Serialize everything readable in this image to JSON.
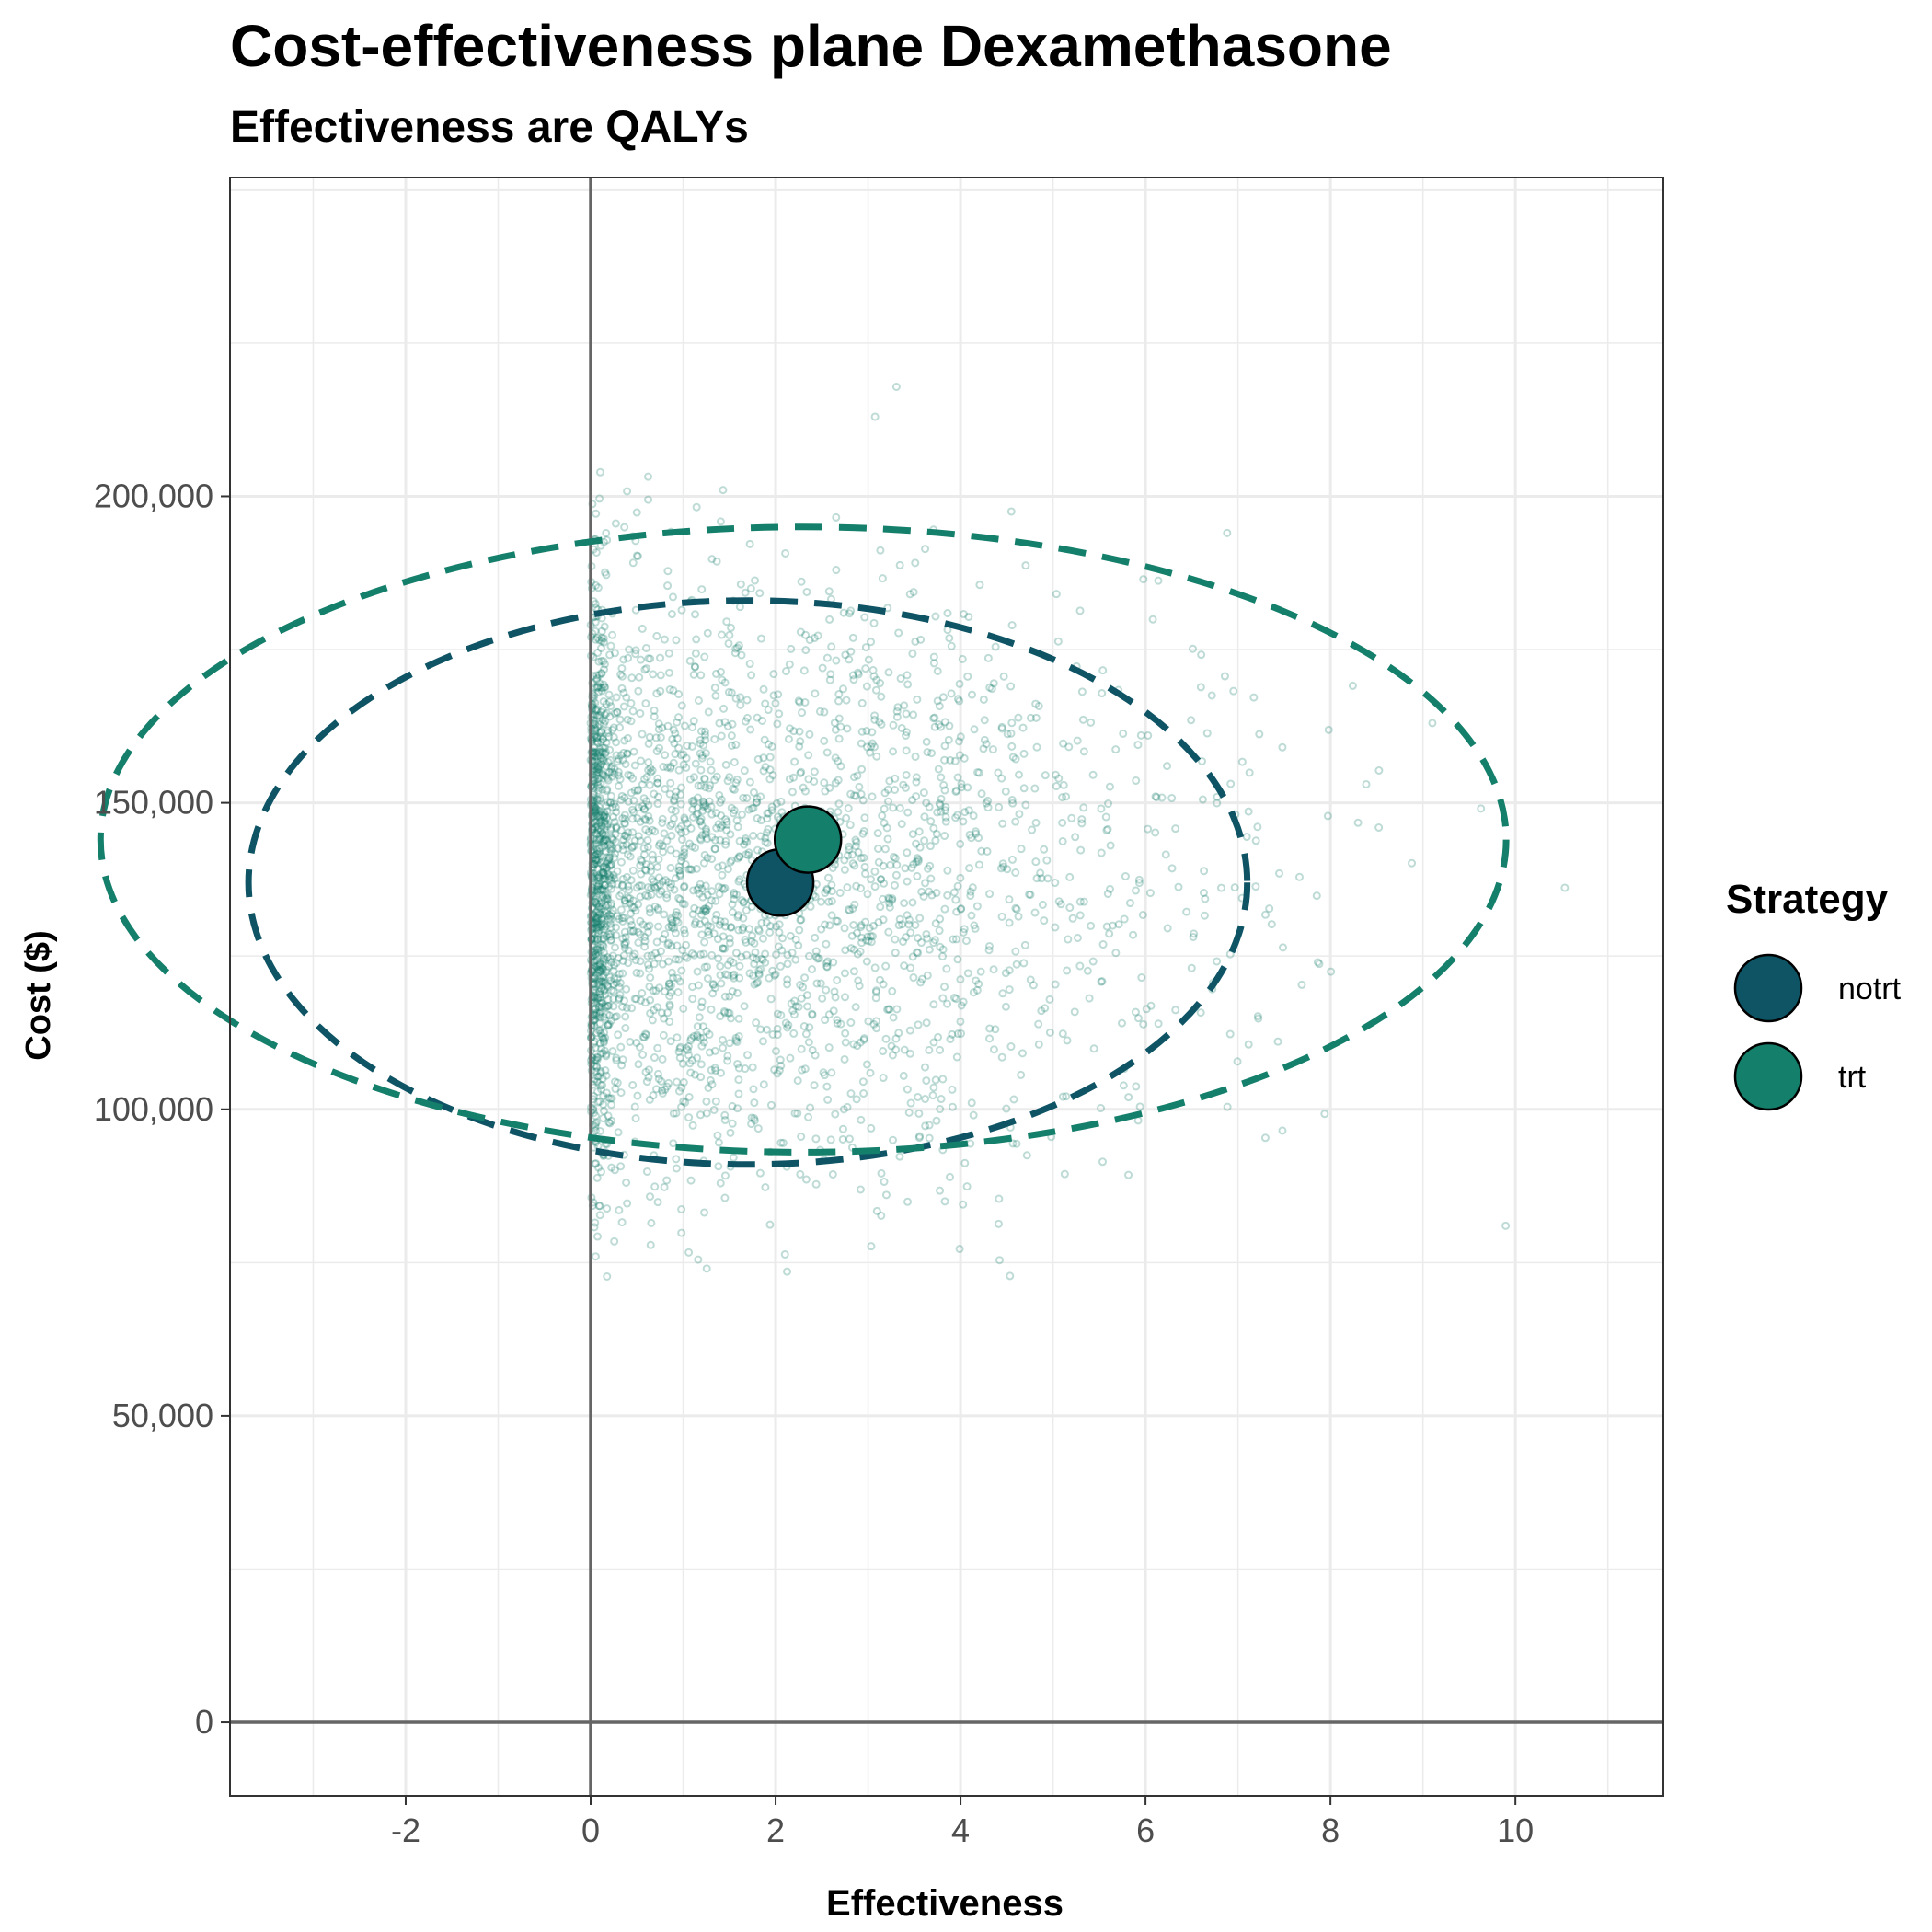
{
  "chart_data": {
    "type": "scatter",
    "title": "Cost-effectiveness plane Dexamethasone",
    "subtitle": "Effectiveness are QALYs",
    "xlabel": "Effectiveness",
    "ylabel": "Cost ($)",
    "xlim": [
      -3.9,
      11.6
    ],
    "ylim": [
      -12000,
      252000
    ],
    "x_ticks": [
      -2,
      0,
      2,
      4,
      6,
      8,
      10
    ],
    "x_tick_labels": [
      "-2",
      "0",
      "2",
      "4",
      "6",
      "8",
      "10"
    ],
    "y_ticks": [
      0,
      50000,
      100000,
      150000,
      200000
    ],
    "y_tick_labels": [
      "0",
      "50,000",
      "100,000",
      "150,000",
      "200,000"
    ],
    "grid": true,
    "reference_lines": {
      "x": 0,
      "y": 0
    },
    "legend": {
      "title": "Strategy",
      "position": "right",
      "entries": [
        {
          "label": "notrt",
          "color": "#0e5465"
        },
        {
          "label": "trt",
          "color": "#147f6a"
        }
      ]
    },
    "series": [
      {
        "name": "notrt",
        "color": "#0e5465",
        "mean": {
          "x": 2.05,
          "y": 137000
        },
        "ellipse": {
          "cx": 1.7,
          "cy": 137000,
          "rx": 5.4,
          "ry": 46000
        }
      },
      {
        "name": "trt",
        "color": "#147f6a",
        "mean": {
          "x": 2.35,
          "y": 144000
        },
        "ellipse": {
          "cx": 2.3,
          "cy": 144000,
          "rx": 7.6,
          "ry": 51000
        }
      }
    ],
    "psa_samples": {
      "count_shown": 3000,
      "x_range": [
        0,
        10.9
      ],
      "y_range": [
        72000,
        230000
      ],
      "color": "#147f6a"
    }
  }
}
